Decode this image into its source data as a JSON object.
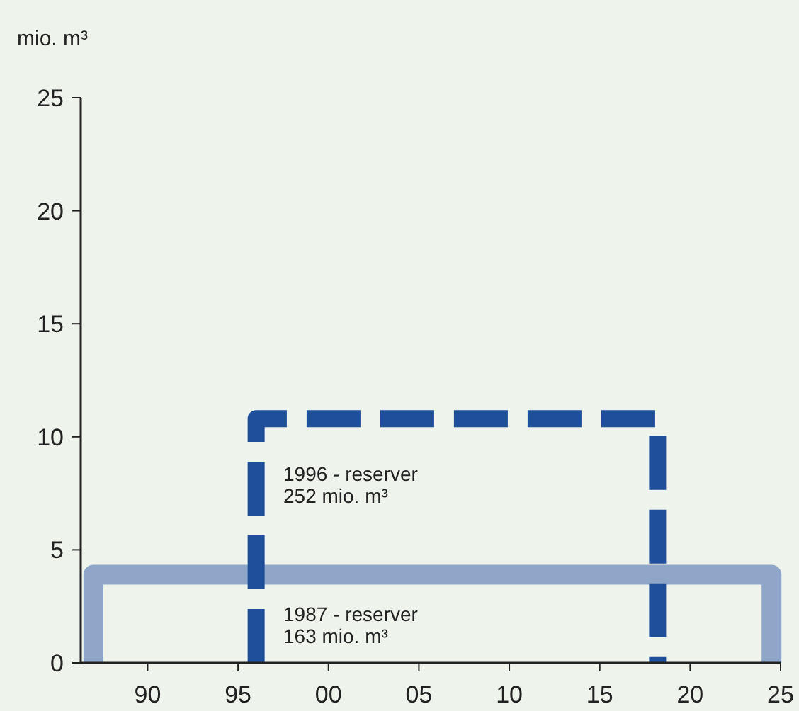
{
  "chart_data": {
    "type": "line",
    "ylabel": "mio. m³",
    "xlim": [
      1986.3,
      2025
    ],
    "xticks": [
      {
        "value": 1990,
        "label": "90"
      },
      {
        "value": 1995,
        "label": "95"
      },
      {
        "value": 2000,
        "label": "00"
      },
      {
        "value": 2005,
        "label": "05"
      },
      {
        "value": 2010,
        "label": "10"
      },
      {
        "value": 2015,
        "label": "15"
      },
      {
        "value": 2020,
        "label": "20"
      },
      {
        "value": 2025,
        "label": "25"
      }
    ],
    "ylim": [
      0,
      25
    ],
    "yticks": [
      0,
      5,
      10,
      15,
      20,
      25
    ],
    "marker": "none",
    "grid": false,
    "series": [
      {
        "color": "#8fa6c9",
        "line_style": "solid",
        "x": [
          1987,
          1987,
          2024.5,
          2024.5
        ],
        "values": [
          0,
          3.9,
          3.9,
          0
        ]
      },
      {
        "color": "#1f4f9b",
        "line_style": "dashed",
        "x": [
          1996,
          1996,
          2018.2,
          2018.2
        ],
        "values": [
          0,
          10.8,
          10.8,
          0
        ]
      }
    ],
    "annotations": [
      "1996 - reserver\n252 mio. m³",
      "1987 - reserver\n163 mio. m³"
    ]
  }
}
